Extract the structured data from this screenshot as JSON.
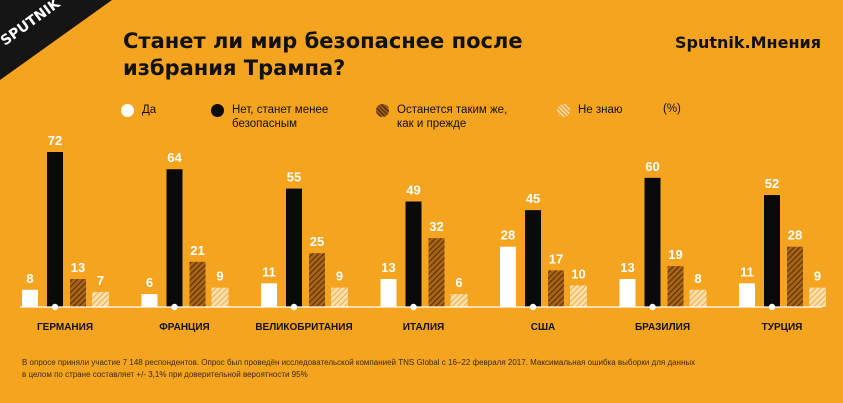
{
  "brand": {
    "logo_text": "SPUTNIK",
    "header_brand": "Sputnik.Мнения"
  },
  "title": {
    "line1": "Станет ли мир безопаснее после",
    "line2": "избрания Трампа?"
  },
  "legend": [
    {
      "label": "Да",
      "style": "white"
    },
    {
      "label": "Нет, станет менее безопасным",
      "style": "black"
    },
    {
      "label": "Останется таким же, как и прежде",
      "style": "hatch-dark"
    },
    {
      "label": "Не знаю",
      "style": "hatch-light"
    }
  ],
  "unit_label": "(%)",
  "colors": {
    "background": "#F5A41F",
    "white": "#FFFFFF",
    "black": "#0A0A0A",
    "hatch_dark": "#8A4F10",
    "hatch_light": "#FBCB85"
  },
  "chart_data": {
    "type": "bar",
    "categories": [
      "ГЕРМАНИЯ",
      "ФРАНЦИЯ",
      "ВЕЛИКОБРИТАНИЯ",
      "ИТАЛИЯ",
      "США",
      "БРАЗИЛИЯ",
      "ТУРЦИЯ"
    ],
    "series": [
      {
        "name": "Да",
        "values": [
          8,
          6,
          11,
          13,
          28,
          13,
          11
        ]
      },
      {
        "name": "Нет, станет менее безопасным",
        "values": [
          72,
          64,
          55,
          49,
          45,
          60,
          52
        ]
      },
      {
        "name": "Останется таким же, как и прежде",
        "values": [
          13,
          21,
          25,
          32,
          17,
          19,
          28
        ]
      },
      {
        "name": "Не знаю",
        "values": [
          7,
          9,
          9,
          6,
          10,
          8,
          9
        ]
      }
    ],
    "ylim": [
      0,
      72
    ]
  },
  "footnote": {
    "line1": "В опросе приняли участие 7 148 респондентов. Опрос был проведён исследовательской компанией TNS Global с 16–22 февраля 2017. Максимальная ошибка выборки для данных",
    "line2": "в целом по стране составляет +/- 3,1% при доверительной вероятности 95%"
  }
}
